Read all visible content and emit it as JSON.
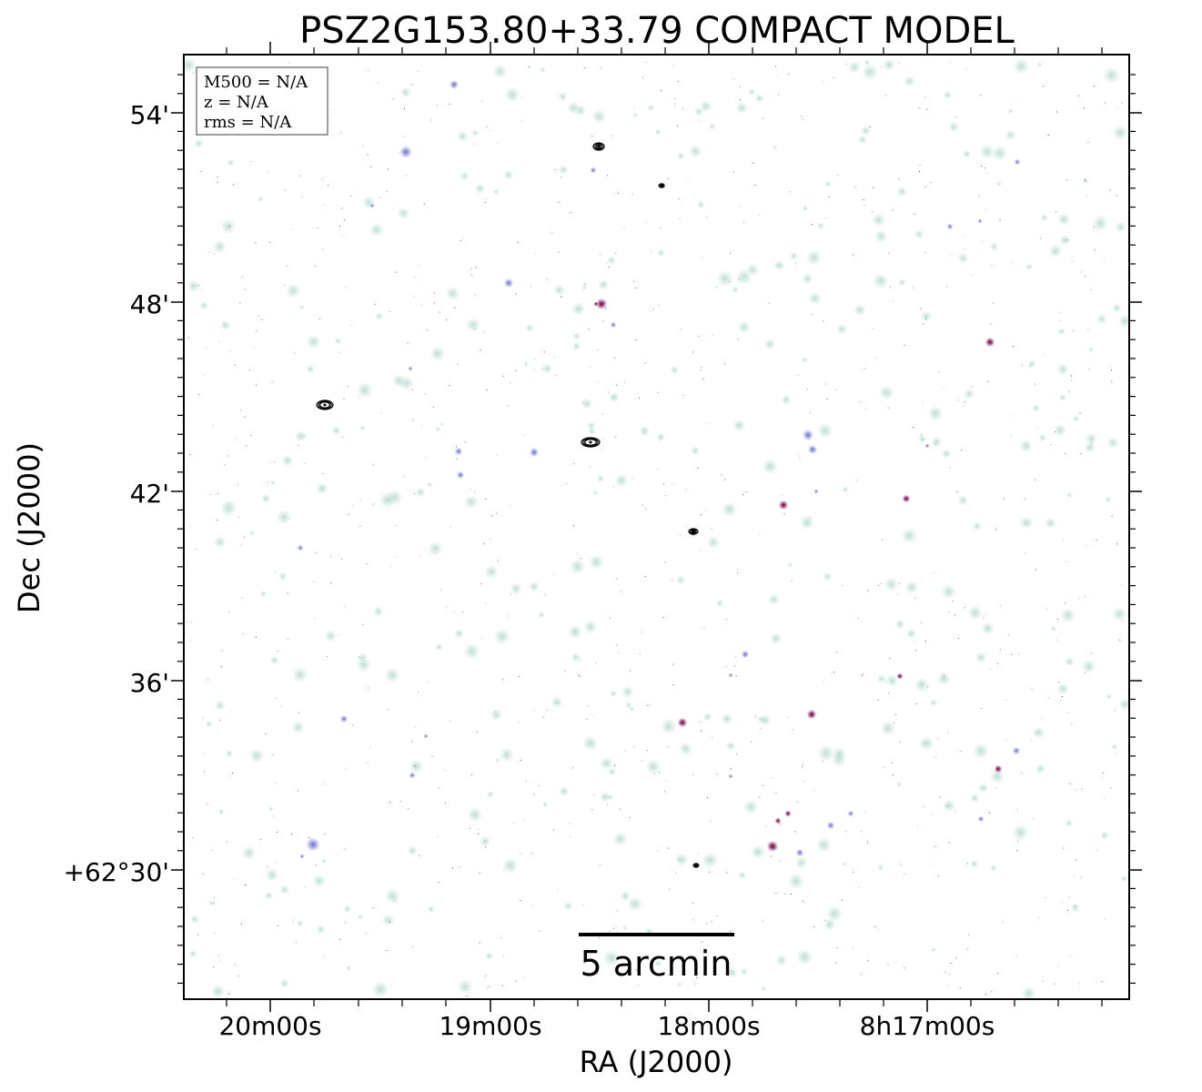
{
  "figure": {
    "title": "PSZ2G153.80+33.79 COMPACT MODEL",
    "xlabel": "RA (J2000)",
    "ylabel": "Dec (J2000)",
    "x_ticks": [
      "20m00s",
      "19m00s",
      "18m00s",
      "8h17m00s"
    ],
    "y_ticks": [
      "54'",
      "48'",
      "42'",
      "36'",
      "+62°30'"
    ],
    "info_box": {
      "line1": "M500 = N/A",
      "line2": "z = N/A",
      "line3": "rms = N/A"
    },
    "scalebar_label": "5 arcmin",
    "colors": {
      "background": "#ffffff",
      "faint_source": "#cfe7df",
      "faint_source_alt": "#b8dcd2",
      "medium_source": "#8d84d8",
      "bright_source": "#b0355a",
      "contour": "#000000",
      "frame": "#000000",
      "legend_border": "#7f7f7f"
    }
  }
}
